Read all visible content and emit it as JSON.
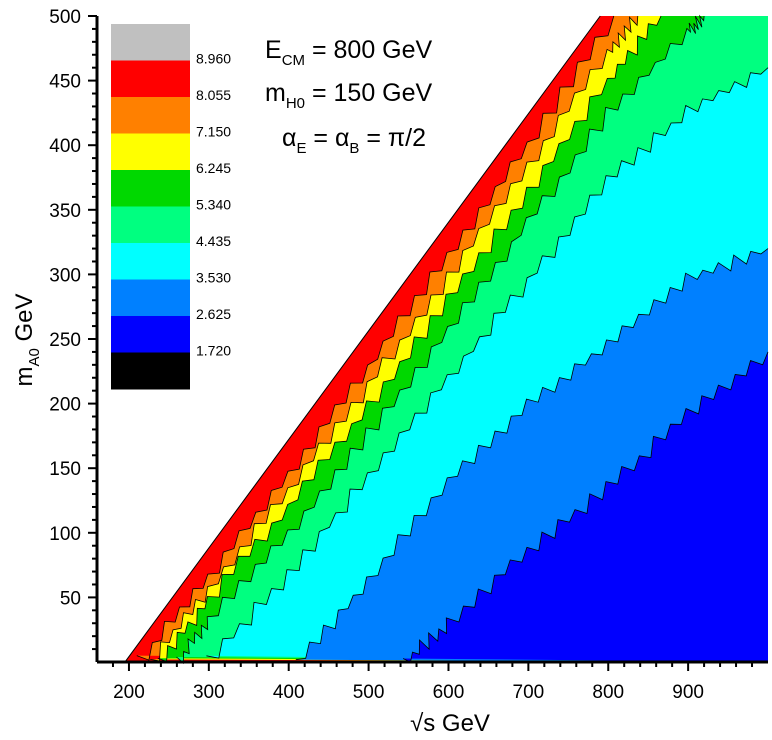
{
  "chart_data": {
    "type": "heatmap",
    "xlabel": "√s GeV",
    "ylabel": {
      "main": "m",
      "sub": "A0",
      "unit": " GeV"
    },
    "xlim": [
      160,
      1000
    ],
    "ylim": [
      0,
      500
    ],
    "x_ticks": [
      "200",
      "300",
      "400",
      "500",
      "600",
      "700",
      "800",
      "900"
    ],
    "y_ticks": [
      "50",
      "100",
      "150",
      "200",
      "250",
      "300",
      "350",
      "400",
      "450",
      "500"
    ],
    "annotations": [
      {
        "main": "E",
        "sub": "CM",
        "rest": " = 800 GeV"
      },
      {
        "main": "m",
        "sub": "H0",
        "rest": " = 150 GeV"
      },
      {
        "a": "α",
        "a_sub": "E",
        "mid": " = ",
        "b": "α",
        "b_sub": "B",
        "rest": " = π/2"
      }
    ],
    "legend": {
      "levels": [
        "8.960",
        "8.055",
        "7.150",
        "6.245",
        "5.340",
        "4.435",
        "3.530",
        "2.625",
        "1.720"
      ],
      "colors": [
        "#c0c0c0",
        "#ff0000",
        "#ff8000",
        "#ffff00",
        "#00d800",
        "#00ff80",
        "#00ffff",
        "#0080ff",
        "#0000ff",
        "#000000"
      ]
    },
    "kinematic_boundary": [
      [
        195,
        0
      ],
      [
        790,
        500
      ]
    ],
    "contour_boundaries": [
      {
        "between": [
          "#ff0000",
          "#ff8000"
        ],
        "points": [
          [
            213,
            0
          ],
          [
            300,
            66
          ],
          [
            400,
            146
          ],
          [
            500,
            228
          ],
          [
            600,
            314
          ],
          [
            700,
            400
          ],
          [
            807,
            500
          ]
        ]
      },
      {
        "between": [
          "#ff8000",
          "#ffff00"
        ],
        "points": [
          [
            228,
            0
          ],
          [
            300,
            56
          ],
          [
            400,
            133
          ],
          [
            500,
            214
          ],
          [
            600,
            298
          ],
          [
            700,
            384
          ],
          [
            800,
            472
          ],
          [
            837,
            500
          ]
        ]
      },
      {
        "between": [
          "#ffff00",
          "#00d800"
        ],
        "points": [
          [
            238,
            0
          ],
          [
            300,
            48
          ],
          [
            400,
            120
          ],
          [
            500,
            198
          ],
          [
            600,
            280
          ],
          [
            700,
            364
          ],
          [
            800,
            450
          ],
          [
            866,
            500
          ]
        ]
      },
      {
        "between": [
          "#00d800",
          "#00ff80"
        ],
        "points": [
          [
            262,
            0
          ],
          [
            300,
            32
          ],
          [
            400,
            100
          ],
          [
            500,
            176
          ],
          [
            600,
            258
          ],
          [
            700,
            340
          ],
          [
            800,
            424
          ],
          [
            900,
            488
          ],
          [
            920,
            500
          ]
        ]
      },
      {
        "between": [
          "#00ff80",
          "#00ffff"
        ],
        "points": [
          [
            300,
            0
          ],
          [
            400,
            68
          ],
          [
            500,
            144
          ],
          [
            600,
            220
          ],
          [
            700,
            295
          ],
          [
            800,
            372
          ],
          [
            900,
            426
          ],
          [
            1000,
            460
          ]
        ]
      },
      {
        "between": [
          "#00ffff",
          "#0080ff"
        ],
        "points": [
          [
            410,
            0
          ],
          [
            500,
            62
          ],
          [
            600,
            140
          ],
          [
            700,
            200
          ],
          [
            800,
            246
          ],
          [
            900,
            296
          ],
          [
            1000,
            320
          ]
        ]
      },
      {
        "between": [
          "#0080ff",
          "#0000ff"
        ],
        "points": [
          [
            545,
            0
          ],
          [
            600,
            30
          ],
          [
            700,
            86
          ],
          [
            800,
            135
          ],
          [
            900,
            192
          ],
          [
            1000,
            240
          ]
        ]
      }
    ]
  }
}
